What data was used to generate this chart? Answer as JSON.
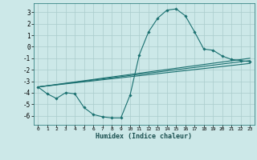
{
  "xlabel": "Humidex (Indice chaleur)",
  "background_color": "#cce8e8",
  "grid_color": "#aacccc",
  "line_color": "#1a7070",
  "xlim": [
    -0.5,
    23.5
  ],
  "ylim": [
    -6.8,
    3.8
  ],
  "xticks": [
    0,
    1,
    2,
    3,
    4,
    5,
    6,
    7,
    8,
    9,
    10,
    11,
    12,
    13,
    14,
    15,
    16,
    17,
    18,
    19,
    20,
    21,
    22,
    23
  ],
  "yticks": [
    -6,
    -5,
    -4,
    -3,
    -2,
    -1,
    0,
    1,
    2,
    3
  ],
  "series": [
    {
      "x": [
        0,
        1,
        2,
        3,
        4,
        5,
        6,
        7,
        8,
        9,
        10,
        11,
        12,
        13,
        14,
        15,
        16,
        17,
        18,
        19,
        20,
        21,
        22,
        23
      ],
      "y": [
        -3.5,
        -4.1,
        -4.5,
        -4.0,
        -4.1,
        -5.3,
        -5.9,
        -6.1,
        -6.2,
        -6.2,
        -4.2,
        -0.7,
        1.3,
        2.5,
        3.2,
        3.3,
        2.7,
        1.3,
        -0.2,
        -0.3,
        -0.8,
        -1.1,
        -1.2,
        -1.3
      ],
      "marker": true
    },
    {
      "x": [
        0,
        23
      ],
      "y": [
        -3.5,
        -1.2
      ],
      "marker": false
    },
    {
      "x": [
        0,
        23
      ],
      "y": [
        -3.5,
        -1.0
      ],
      "marker": false
    },
    {
      "x": [
        0,
        23
      ],
      "y": [
        -3.5,
        -1.45
      ],
      "marker": false
    }
  ]
}
